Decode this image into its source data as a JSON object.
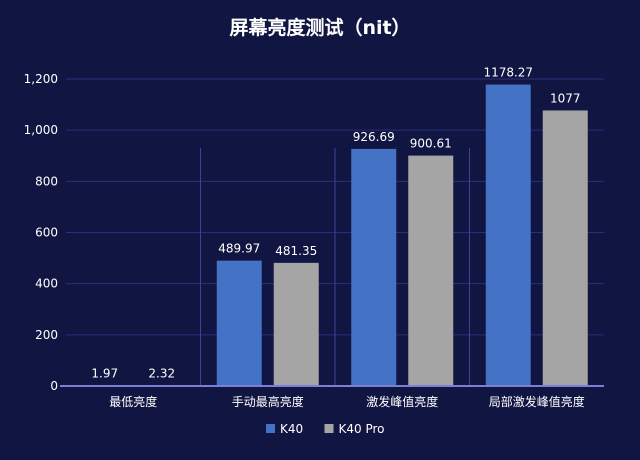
{
  "chart_data": {
    "type": "bar",
    "title": "屏幕亮度测试（nit）",
    "categories": [
      "最低亮度",
      "手动最高亮度",
      "激发峰值亮度",
      "局部激发峰值亮度"
    ],
    "series": [
      {
        "name": "K40",
        "values": [
          1.97,
          489.97,
          926.69,
          1178.27
        ],
        "labels": [
          "1.97",
          "489.97",
          "926.69",
          "1178.27"
        ],
        "color": "#4472c4"
      },
      {
        "name": "K40 Pro",
        "values": [
          2.32,
          481.35,
          900.61,
          1077
        ],
        "labels": [
          "2.32",
          "481.35",
          "900.61",
          "1077"
        ],
        "color": "#a5a5a5"
      }
    ],
    "ylim": [
      0,
      1200
    ],
    "yticks": [
      0,
      200,
      400,
      600,
      800,
      1000,
      1200
    ],
    "ytick_labels": [
      "0",
      "200",
      "400",
      "600",
      "800",
      "1,000",
      "1,200"
    ],
    "grid": true,
    "legend_position": "bottom-center"
  },
  "colors": {
    "background": "#111542",
    "gridline": "#2a2f7a",
    "axis": "#7b7fd6"
  }
}
